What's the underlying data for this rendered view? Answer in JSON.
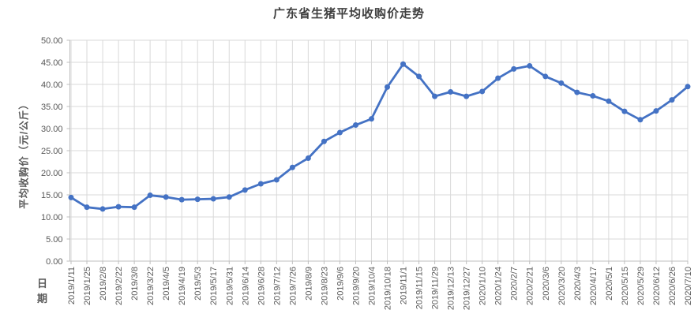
{
  "chart_data": {
    "type": "line",
    "title": "广东省生猪平均收购价走势",
    "xlabel": "日期",
    "ylabel": "平均收购价（元/公斤）",
    "categories": [
      "2019/1/11",
      "2019/1/25",
      "2019/2/8",
      "2019/2/22",
      "2019/3/8",
      "2019/3/22",
      "2019/4/5",
      "2019/4/19",
      "2019/5/3",
      "2019/5/17",
      "2019/5/31",
      "2019/6/14",
      "2019/6/28",
      "2019/7/12",
      "2019/7/26",
      "2019/8/9",
      "2019/8/23",
      "2019/9/6",
      "2019/9/20",
      "2019/10/4",
      "2019/10/18",
      "2019/11/1",
      "2019/11/15",
      "2019/11/29",
      "2019/12/13",
      "2019/12/27",
      "2020/1/10",
      "2020/1/24",
      "2020/2/7",
      "2020/2/21",
      "2020/3/6",
      "2020/3/20",
      "2020/4/3",
      "2020/4/17",
      "2020/5/1",
      "2020/5/15",
      "2020/5/29",
      "2020/6/12",
      "2020/6/26",
      "2020/7/10"
    ],
    "values": [
      14.4,
      12.2,
      11.8,
      12.3,
      12.2,
      14.9,
      14.5,
      13.9,
      14.0,
      14.1,
      14.5,
      16.1,
      17.5,
      18.4,
      21.2,
      23.3,
      27.1,
      29.1,
      30.8,
      32.2,
      39.4,
      44.6,
      41.8,
      37.3,
      38.3,
      37.3,
      38.4,
      41.4,
      43.5,
      44.2,
      41.8,
      40.3,
      38.2,
      37.4,
      36.2,
      33.9,
      32.0,
      34.0,
      36.5,
      39.5
    ],
    "ylim": [
      0,
      50
    ],
    "ytick_step": 5,
    "y_ticks": [
      "0.00",
      "5.00",
      "10.00",
      "15.00",
      "20.00",
      "25.00",
      "30.00",
      "35.00",
      "40.00",
      "45.00",
      "50.00"
    ],
    "grid": true,
    "legend": "none",
    "marker": "circle"
  },
  "colors": {
    "line": "#4472C4",
    "marker": "#4472C4",
    "gridline": "#D9D9D9",
    "axis": "#BFBFBF",
    "tick_label": "#595959",
    "title": "#3F3F3F",
    "background": "#FFFFFF"
  }
}
